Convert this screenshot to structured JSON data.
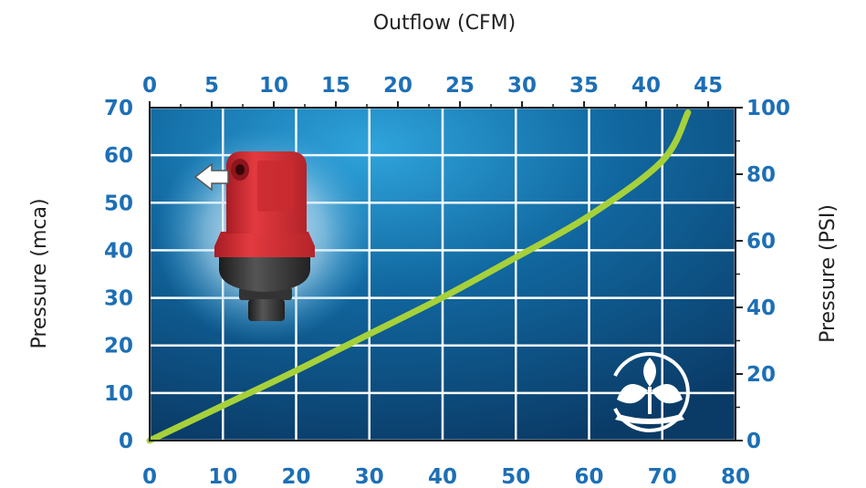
{
  "chart_data": {
    "type": "line",
    "top_axis_title": "Outflow (CFM)",
    "left_axis_title": "Pressure (mca)",
    "right_axis_title": "Pressure (PSI)",
    "bottom_axis_title": "",
    "bottom_ticks": [
      "0",
      "10",
      "20",
      "30",
      "40",
      "50",
      "60",
      "70",
      "80"
    ],
    "top_ticks": [
      "0",
      "5",
      "10",
      "15",
      "20",
      "25",
      "30",
      "35",
      "40",
      "45"
    ],
    "left_ticks": [
      "0",
      "10",
      "20",
      "30",
      "40",
      "50",
      "60",
      "70"
    ],
    "right_ticks": [
      "0",
      "20",
      "40",
      "60",
      "80",
      "100"
    ],
    "xlim": [
      0,
      80
    ],
    "ylim": [
      0,
      70
    ],
    "top_xlim": [
      0,
      47.2
    ],
    "right_ylim": [
      0,
      100
    ],
    "grid": true,
    "series": [
      {
        "x": [
          0,
          10,
          20,
          30,
          40,
          50,
          60,
          70,
          73.5
        ],
        "y": [
          0,
          10.5,
          21,
          32,
          43,
          55,
          67.5,
          84,
          98.5
        ]
      }
    ],
    "colors": {
      "line": "#a6d13a",
      "axis_label": "#1d6fb5",
      "plot_bg": "#0f6ea8",
      "grid": "#ffffff"
    },
    "icons": [
      "valve-product-image",
      "flow-arrow-icon",
      "brand-logo-icon"
    ]
  }
}
